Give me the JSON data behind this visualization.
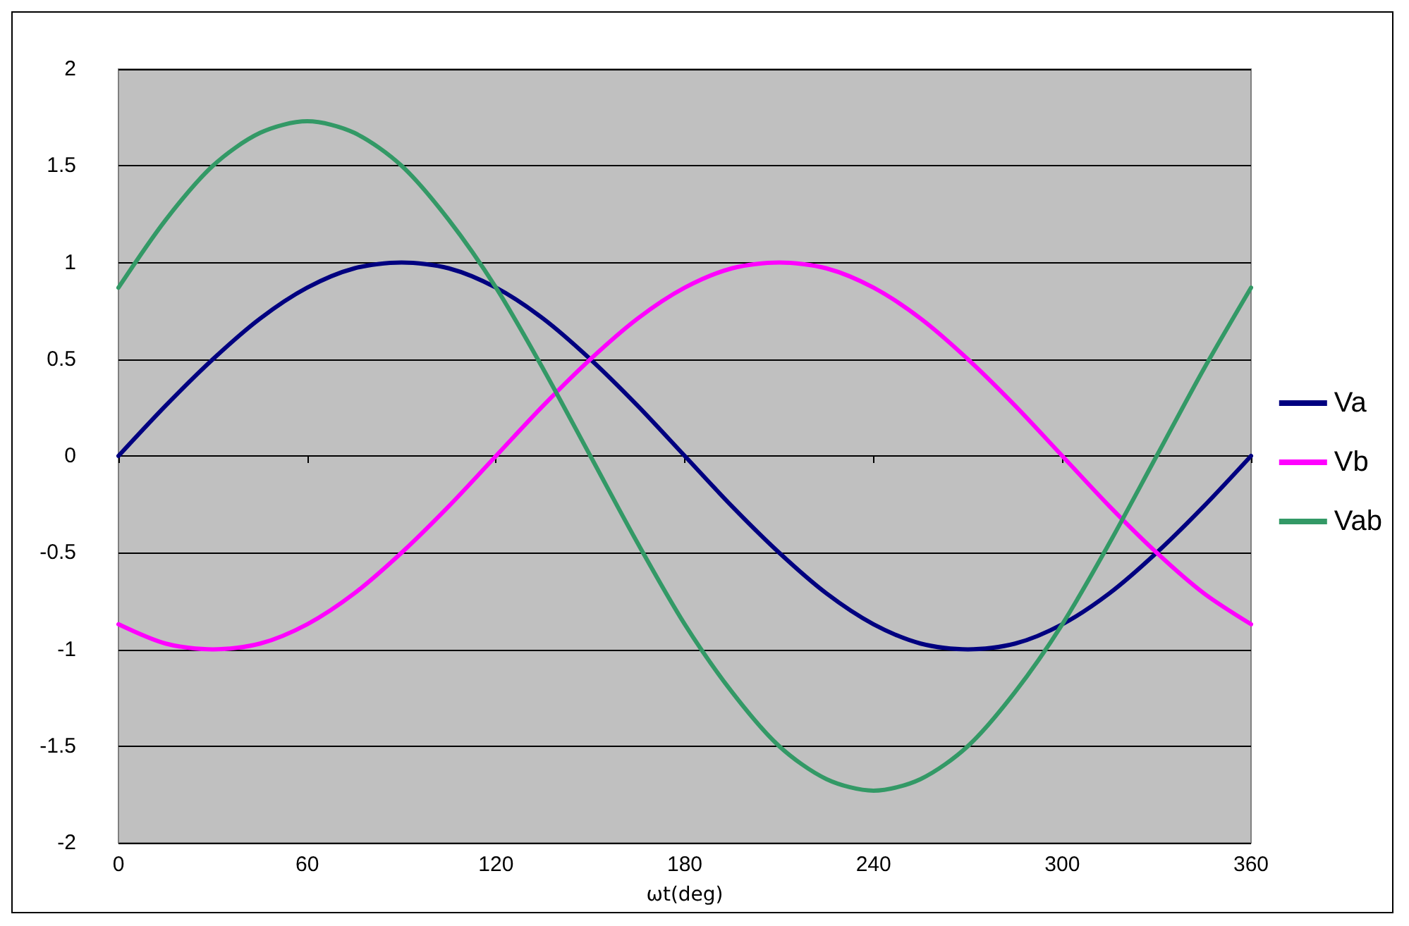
{
  "chart_data": {
    "type": "line",
    "xlabel": "ωt(deg)",
    "x": [
      0,
      15,
      30,
      45,
      60,
      75,
      90,
      105,
      120,
      135,
      150,
      165,
      180,
      195,
      210,
      225,
      240,
      255,
      270,
      285,
      300,
      315,
      330,
      345,
      360
    ],
    "series": [
      {
        "name": "Va",
        "color": "#000080",
        "values": [
          0,
          0.26,
          0.5,
          0.71,
          0.87,
          0.97,
          1,
          0.97,
          0.87,
          0.71,
          0.5,
          0.26,
          0,
          -0.26,
          -0.5,
          -0.71,
          -0.87,
          -0.97,
          -1,
          -0.97,
          -0.87,
          -0.71,
          -0.5,
          -0.26,
          0
        ]
      },
      {
        "name": "Vb",
        "color": "#ff00ff",
        "values": [
          -0.87,
          -0.97,
          -1,
          -0.97,
          -0.87,
          -0.71,
          -0.5,
          -0.26,
          0,
          0.26,
          0.5,
          0.71,
          0.87,
          0.97,
          1,
          0.97,
          0.87,
          0.71,
          0.5,
          0.26,
          0,
          -0.26,
          -0.5,
          -0.71,
          -0.87
        ]
      },
      {
        "name": "Vab",
        "color": "#339966",
        "values": [
          0.87,
          1.22,
          1.5,
          1.67,
          1.73,
          1.67,
          1.5,
          1.22,
          0.87,
          0.45,
          0,
          -0.45,
          -0.87,
          -1.22,
          -1.5,
          -1.67,
          -1.73,
          -1.67,
          -1.5,
          -1.22,
          -0.87,
          -0.45,
          0,
          0.45,
          0.87
        ]
      }
    ],
    "xlim": [
      0,
      360
    ],
    "xticks": [
      0,
      60,
      120,
      180,
      240,
      300,
      360
    ],
    "ylim": [
      -2,
      2
    ],
    "yticks": [
      -2,
      -1.5,
      -1,
      -0.5,
      0,
      0.5,
      1,
      1.5,
      2
    ],
    "grid": "y",
    "legend": "right",
    "marker": "none",
    "line_style": "solid"
  }
}
